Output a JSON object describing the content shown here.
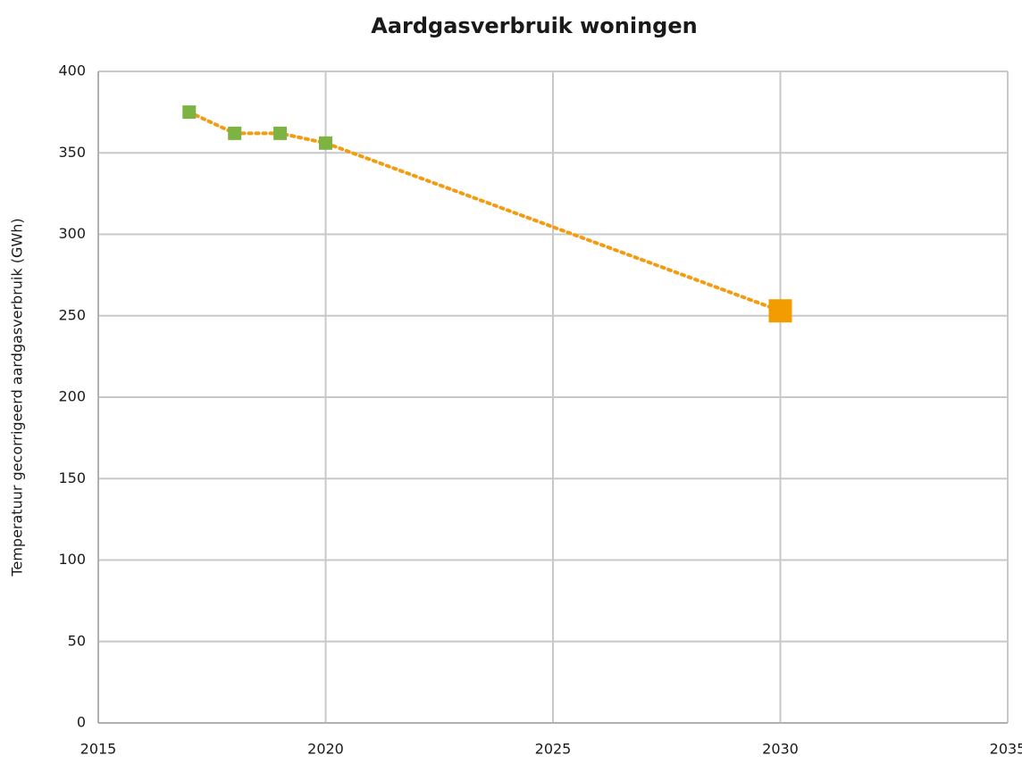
{
  "chart_data": {
    "type": "scatter",
    "title": "Aardgasverbruik woningen",
    "y_label": "Temperatuur gecorrigeerd aardgasverbruik (GWh)",
    "xlim": [
      2015,
      2035
    ],
    "xticks": [
      2015,
      2020,
      2025,
      2030,
      2035
    ],
    "ylim": [
      0,
      400
    ],
    "yticks": [
      0,
      50,
      100,
      150,
      200,
      250,
      300,
      350,
      400
    ],
    "grid": true,
    "line": {
      "color": "#f39c12",
      "style": "dotted"
    },
    "series": [
      {
        "color": "#7cb342",
        "marker_size": "small",
        "x": [
          2017,
          2018,
          2019,
          2020
        ],
        "values": [
          375,
          362,
          362,
          356
        ]
      },
      {
        "color": "#f39c00",
        "marker_size": "large",
        "x": [
          2030
        ],
        "values": [
          253
        ]
      }
    ]
  }
}
